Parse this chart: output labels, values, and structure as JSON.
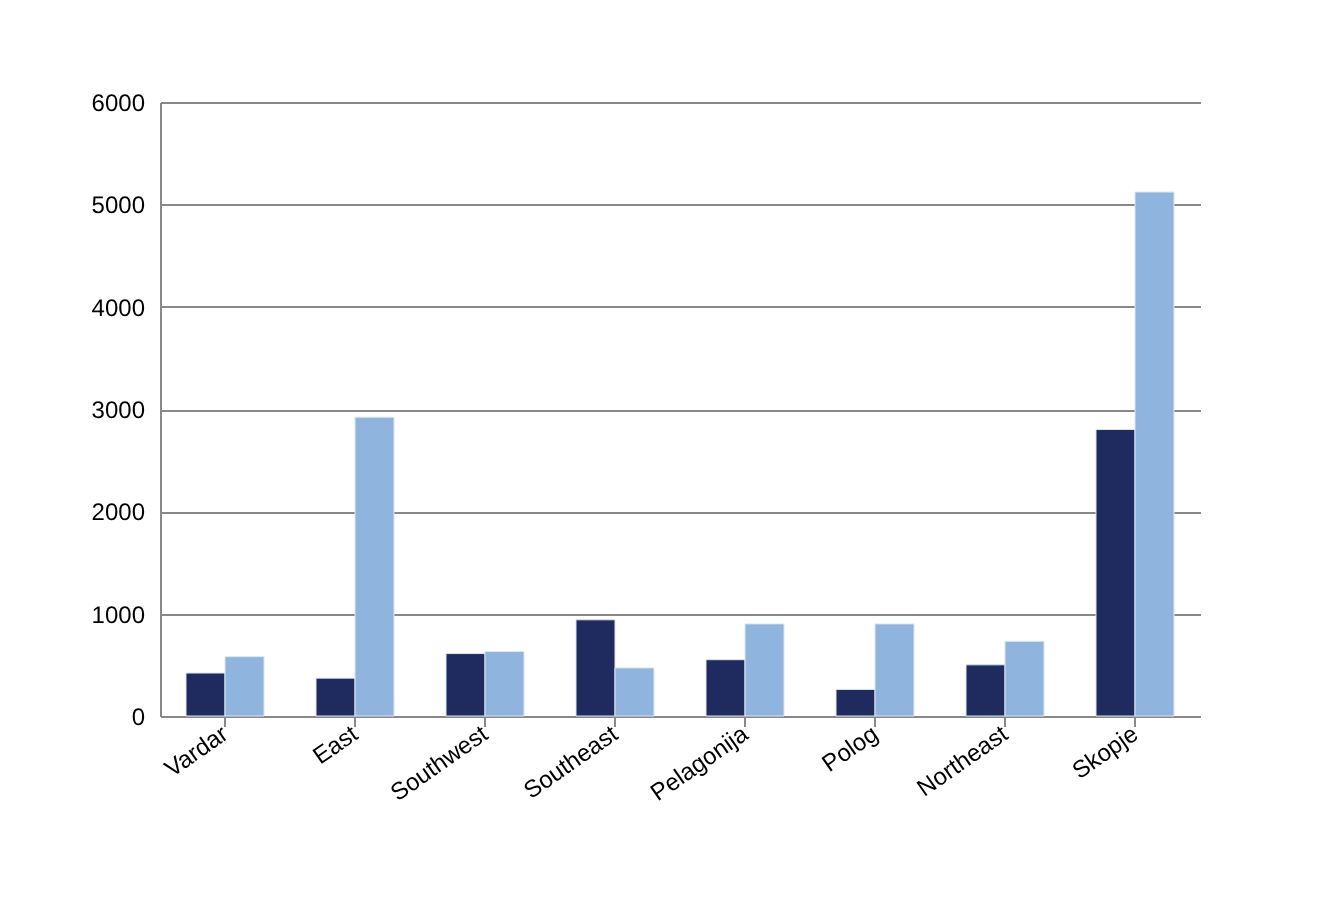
{
  "chart_data": {
    "type": "bar",
    "categories": [
      "Vardar",
      "East",
      "Southwest",
      "Southeast",
      "Pelagonija",
      "Polog",
      "Northeast",
      "Skopje"
    ],
    "series": [
      {
        "color": "#1f2a5e",
        "values": [
          420,
          370,
          610,
          940,
          550,
          260,
          500,
          2800
        ]
      },
      {
        "color": "#8fb4de",
        "values": [
          580,
          2920,
          630,
          470,
          900,
          900,
          730,
          5120
        ]
      }
    ],
    "ylim": [
      0,
      6000
    ],
    "yticks": [
      0,
      1000,
      2000,
      3000,
      4000,
      5000,
      6000
    ],
    "grid": "y",
    "legend": false
  }
}
